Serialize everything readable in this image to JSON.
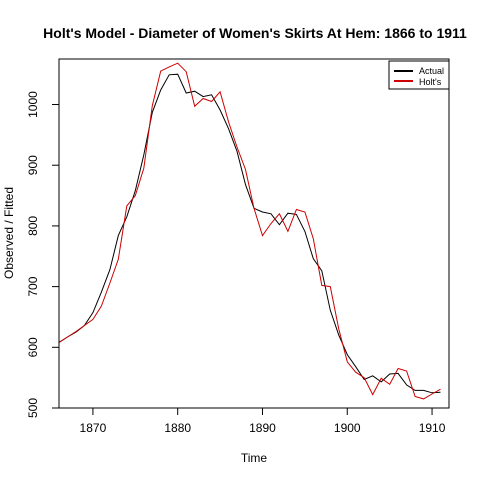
{
  "chart_data": {
    "type": "line",
    "title": "Holt's Model - Diameter of Women's Skirts At Hem: 1866 to 1911",
    "xlabel": "Time",
    "ylabel": "Observed / Fitted",
    "xlim": [
      1866,
      1912
    ],
    "ylim": [
      500,
      1075
    ],
    "x_ticks": [
      1870,
      1880,
      1890,
      1900,
      1910
    ],
    "y_ticks": [
      500,
      600,
      700,
      800,
      900,
      1000
    ],
    "legend_position": "top-right",
    "grid": false,
    "x": [
      1866,
      1867,
      1868,
      1869,
      1870,
      1871,
      1872,
      1873,
      1874,
      1875,
      1876,
      1877,
      1878,
      1879,
      1880,
      1881,
      1882,
      1883,
      1884,
      1885,
      1886,
      1887,
      1888,
      1889,
      1890,
      1891,
      1892,
      1893,
      1894,
      1895,
      1896,
      1897,
      1898,
      1899,
      1900,
      1901,
      1902,
      1903,
      1904,
      1905,
      1906,
      1907,
      1908,
      1909,
      1910,
      1911
    ],
    "series": [
      {
        "name": "Actual",
        "color": "#000000",
        "values": [
          608,
          617,
          625,
          636,
          657,
          691,
          728,
          784,
          815,
          858,
          917,
          987,
          1024,
          1049,
          1050,
          1019,
          1022,
          1013,
          1016,
          991,
          960,
          923,
          868,
          829,
          823,
          820,
          802,
          821,
          819,
          791,
          746,
          726,
          661,
          620,
          588,
          568,
          547,
          553,
          543,
          556,
          557,
          538,
          529,
          529,
          525,
          526
        ]
      },
      {
        "name": "Holt's",
        "color": "#cc0000",
        "values": [
          608,
          617,
          626,
          636,
          646,
          668,
          706,
          745,
          833,
          850,
          895,
          998,
          1055,
          1062,
          1068,
          1054,
          997,
          1010,
          1005,
          1021,
          971,
          930,
          893,
          829,
          784,
          804,
          820,
          791,
          827,
          823,
          779,
          702,
          700,
          630,
          576,
          559,
          550,
          522,
          549,
          539,
          565,
          561,
          519,
          515,
          523,
          531
        ]
      }
    ]
  }
}
